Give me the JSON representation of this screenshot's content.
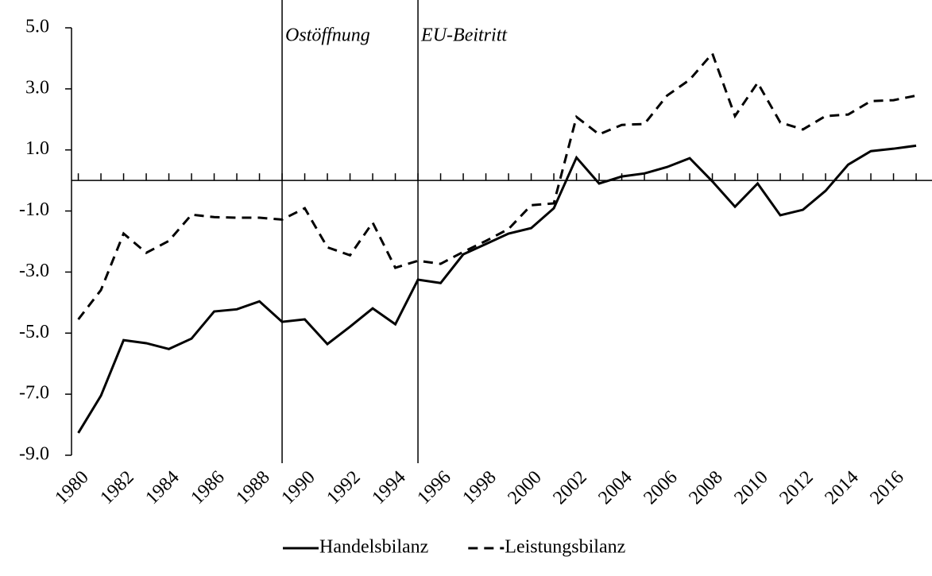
{
  "chart_data": {
    "type": "line",
    "x": [
      1980,
      1981,
      1982,
      1983,
      1984,
      1985,
      1986,
      1987,
      1988,
      1989,
      1990,
      1991,
      1992,
      1993,
      1994,
      1995,
      1996,
      1997,
      1998,
      1999,
      2000,
      2001,
      2002,
      2003,
      2004,
      2005,
      2006,
      2007,
      2008,
      2009,
      2010,
      2011,
      2012,
      2013,
      2014,
      2015,
      2016,
      2017
    ],
    "series": [
      {
        "name": "Handelsbilanz",
        "color": "#000000",
        "dash": "solid",
        "values": [
          -8.27,
          -7.05,
          -5.23,
          -5.33,
          -5.52,
          -5.18,
          -4.29,
          -4.22,
          -3.96,
          -4.63,
          -4.55,
          -5.36,
          -4.79,
          -4.19,
          -4.71,
          -3.25,
          -3.36,
          -2.42,
          -2.08,
          -1.74,
          -1.56,
          -0.91,
          0.75,
          -0.1,
          0.13,
          0.23,
          0.44,
          0.73,
          -0.03,
          -0.86,
          -0.1,
          -1.14,
          -0.96,
          -0.34,
          0.52,
          0.96,
          1.04,
          1.14
        ]
      },
      {
        "name": "Leistungsbilanz",
        "color": "#000000",
        "dash": "dashed",
        "values": [
          -4.55,
          -3.59,
          -1.74,
          -2.37,
          -1.98,
          -1.12,
          -1.2,
          -1.22,
          -1.22,
          -1.28,
          -0.91,
          -2.19,
          -2.45,
          -1.38,
          -2.86,
          -2.63,
          -2.73,
          -2.34,
          -1.98,
          -1.59,
          -0.81,
          -0.75,
          2.08,
          1.51,
          1.82,
          1.85,
          2.78,
          3.3,
          4.16,
          2.11,
          3.2,
          1.9,
          1.67,
          2.11,
          2.16,
          2.6,
          2.63,
          2.78
        ]
      }
    ],
    "xlim": [
      1979.7,
      2017.7
    ],
    "xticks": [
      1980,
      1982,
      1984,
      1986,
      1988,
      1990,
      1992,
      1994,
      1996,
      1998,
      2000,
      2002,
      2004,
      2006,
      2008,
      2010,
      2012,
      2014,
      2016
    ],
    "ylim": [
      -9,
      5
    ],
    "yticks": [
      {
        "value": 5,
        "label": "5.0"
      },
      {
        "value": 3,
        "label": "3.0"
      },
      {
        "value": 1,
        "label": "1.0"
      },
      {
        "value": -1,
        "label": "-1.0"
      },
      {
        "value": -3,
        "label": "-3.0"
      },
      {
        "value": -5,
        "label": "-5.0"
      },
      {
        "value": -7,
        "label": "-7.0"
      },
      {
        "value": -9,
        "label": "-9.0"
      }
    ],
    "annotations": [
      {
        "text": "Ostöffnung",
        "x": 1989
      },
      {
        "text": "EU-Beitritt",
        "x": 1995
      }
    ],
    "legend": "bottom"
  }
}
